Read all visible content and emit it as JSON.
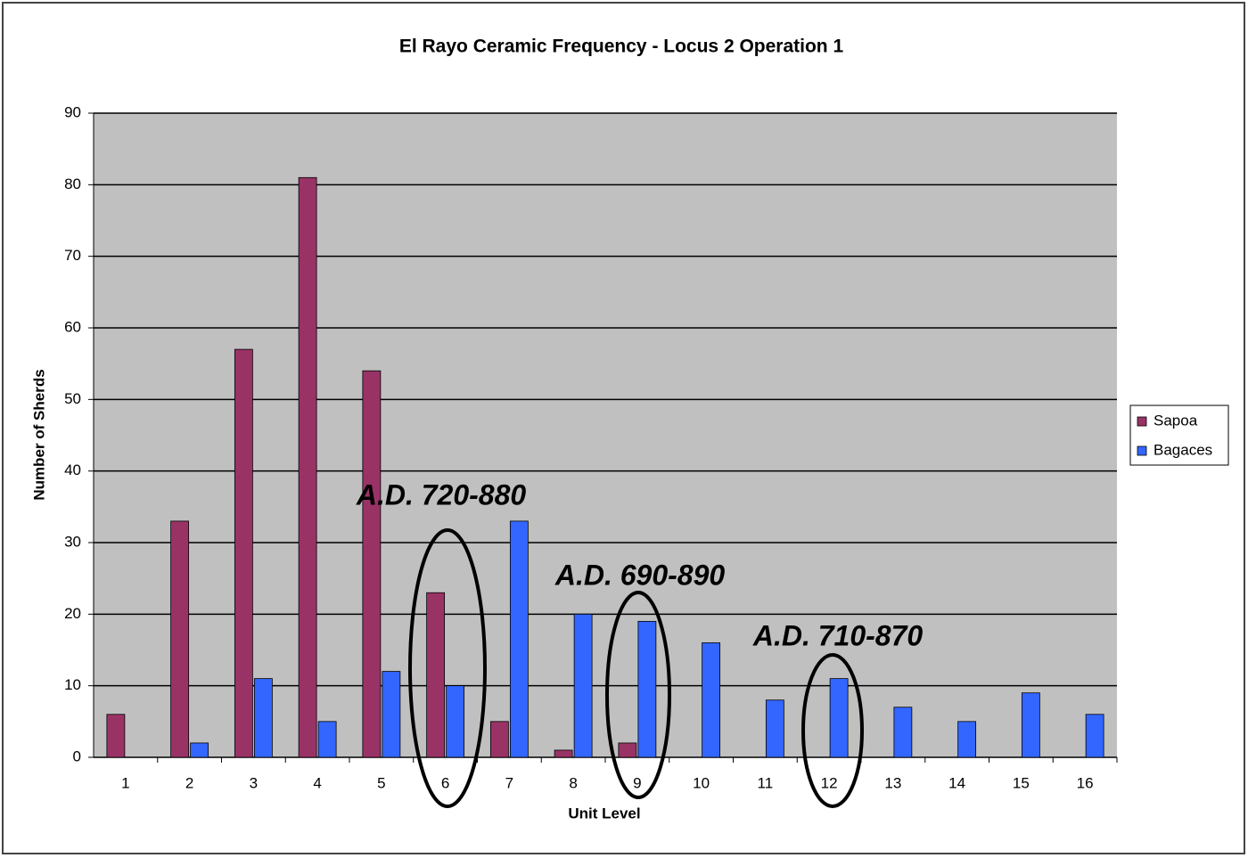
{
  "chart_data": {
    "type": "bar",
    "title": "El Rayo Ceramic Frequency - Locus 2 Operation 1",
    "x_label": "Unit Level",
    "y_label": "Number of Sherds",
    "categories": [
      "1",
      "2",
      "3",
      "4",
      "5",
      "6",
      "7",
      "8",
      "9",
      "10",
      "11",
      "12",
      "13",
      "14",
      "15",
      "16"
    ],
    "series": [
      {
        "name": "Sapoa",
        "color": "#993366",
        "values": [
          6,
          33,
          57,
          81,
          54,
          23,
          5,
          1,
          2,
          0,
          0,
          0,
          0,
          0,
          0,
          0
        ]
      },
      {
        "name": "Bagaces",
        "color": "#3366ff",
        "values": [
          0,
          2,
          11,
          5,
          12,
          10,
          33,
          20,
          19,
          16,
          8,
          11,
          7,
          5,
          9,
          6
        ]
      }
    ],
    "ylim": [
      0,
      90
    ],
    "yticks": [
      0,
      10,
      20,
      30,
      40,
      50,
      60,
      70,
      80,
      90
    ],
    "grid": true,
    "legend": "right",
    "annotations": [
      "A.D. 720-880",
      "A.D. 690-890",
      "A.D. 710-870"
    ]
  }
}
